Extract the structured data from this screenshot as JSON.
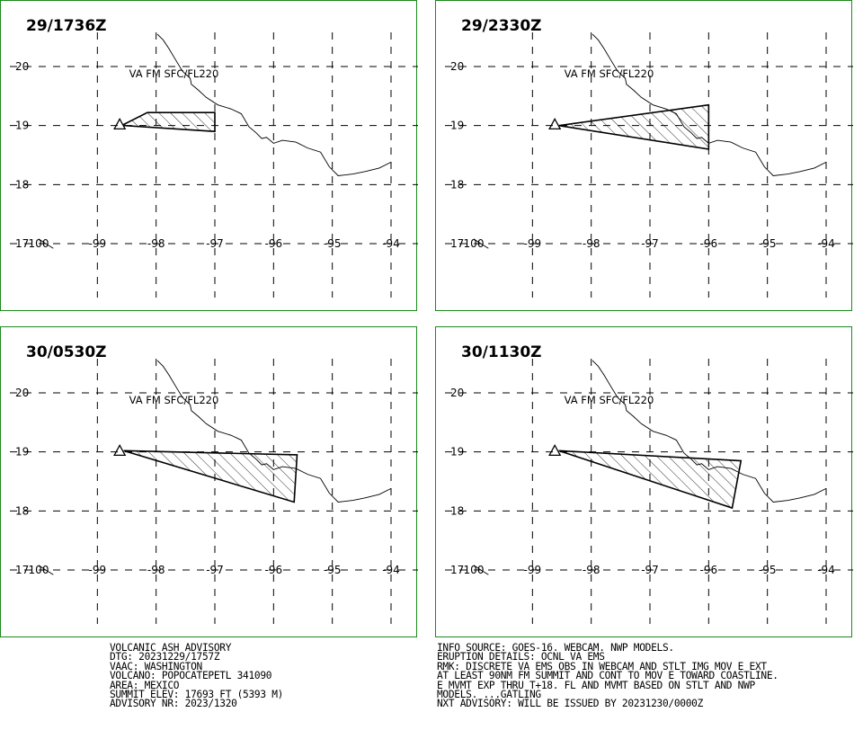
{
  "panels": [
    {
      "title": "29/1736Z",
      "label": "VA FM SFC/FL220",
      "polygon": [
        [
          -98.55,
          19.0
        ],
        [
          -98.55,
          19.02
        ],
        [
          -98.15,
          19.22
        ],
        [
          -97.0,
          19.22
        ],
        [
          -97.0,
          18.9
        ],
        [
          -98.55,
          19.0
        ]
      ]
    },
    {
      "title": "29/2330Z",
      "label": "VA FM SFC/FL220",
      "polygon": [
        [
          -98.55,
          19.0
        ],
        [
          -96.0,
          19.35
        ],
        [
          -96.0,
          18.6
        ],
        [
          -98.55,
          19.0
        ]
      ]
    },
    {
      "title": "30/0530Z",
      "label": "VA FM SFC/FL220",
      "polygon": [
        [
          -98.55,
          19.02
        ],
        [
          -95.6,
          18.95
        ],
        [
          -95.65,
          18.15
        ],
        [
          -98.55,
          19.02
        ]
      ]
    },
    {
      "title": "30/1130Z",
      "label": "VA FM SFC/FL220",
      "polygon": [
        [
          -98.55,
          19.02
        ],
        [
          -95.45,
          18.85
        ],
        [
          -95.6,
          18.05
        ],
        [
          -98.55,
          19.02
        ]
      ]
    }
  ],
  "map": {
    "lon_range": [
      -100,
      -94
    ],
    "lat_range": [
      17,
      20
    ],
    "lat_ticks": [
      "20",
      "19",
      "18",
      "17"
    ],
    "lon_ticks": [
      "100",
      "-99",
      "-98",
      "-97",
      "-96",
      "-95",
      "-94"
    ],
    "volcano": [
      -98.62,
      19.02
    ],
    "colors": {
      "frame": "#1a8a1a",
      "ink": "#000000",
      "background": "#ffffff"
    }
  },
  "advisory": {
    "left": [
      "VOLCANIC ASH ADVISORY",
      "DTG: 20231229/1757Z",
      "VAAC: WASHINGTON",
      "VOLCANO: POPOCATEPETL 341090",
      "AREA: MEXICO",
      "SUMMIT ELEV: 17693 FT (5393 M)",
      "ADVISORY NR: 2023/1320"
    ],
    "right": [
      "INFO SOURCE: GOES-16. WEBCAM. NWP MODELS.",
      "ERUPTION DETAILS: OCNL VA EMS",
      "RMK: DISCRETE VA EMS OBS IN WEBCAM AND STLT IMG MOV E EXT",
      "AT LEAST 90NM FM SUMMIT AND CONT TO MOV E TOWARD COASTLINE.",
      "E MVMT EXP THRU T+18. FL AND MVMT BASED ON STLT AND NWP",
      "MODELS. ...GATLING",
      "NXT ADVISORY: WILL BE ISSUED BY 20231230/0000Z"
    ]
  }
}
